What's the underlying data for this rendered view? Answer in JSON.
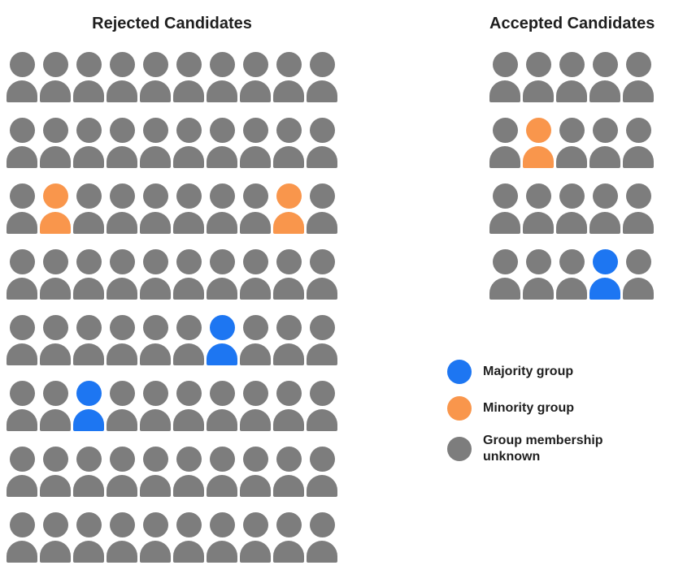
{
  "page": {
    "background": "#ffffff"
  },
  "panels": {
    "rejected": {
      "title": "Rejected Candidates"
    },
    "accepted": {
      "title": "Accepted Candidates"
    }
  },
  "legend": {
    "items": [
      {
        "key": "majority",
        "label": "Majority group",
        "color": "#1d76f2"
      },
      {
        "key": "minority",
        "label": "Minority group",
        "color": "#f9964c"
      },
      {
        "key": "unknown",
        "label": "Group membership unknown",
        "color": "#7d7d7d"
      }
    ]
  },
  "chart_data": [
    {
      "type": "pictograph",
      "title": "Rejected Candidates",
      "rows": 8,
      "columns": 10,
      "total_icons": 80,
      "counts": {
        "majority": 2,
        "minority": 2,
        "unknown": 76
      },
      "highlights": [
        {
          "row": 2,
          "col": 1,
          "group": "minority"
        },
        {
          "row": 2,
          "col": 8,
          "group": "minority"
        },
        {
          "row": 4,
          "col": 6,
          "group": "majority"
        },
        {
          "row": 5,
          "col": 2,
          "group": "majority"
        }
      ]
    },
    {
      "type": "pictograph",
      "title": "Accepted Candidates",
      "rows": 4,
      "columns": 5,
      "total_icons": 20,
      "counts": {
        "majority": 1,
        "minority": 1,
        "unknown": 18
      },
      "highlights": [
        {
          "row": 1,
          "col": 1,
          "group": "minority"
        },
        {
          "row": 3,
          "col": 3,
          "group": "majority"
        }
      ]
    }
  ]
}
